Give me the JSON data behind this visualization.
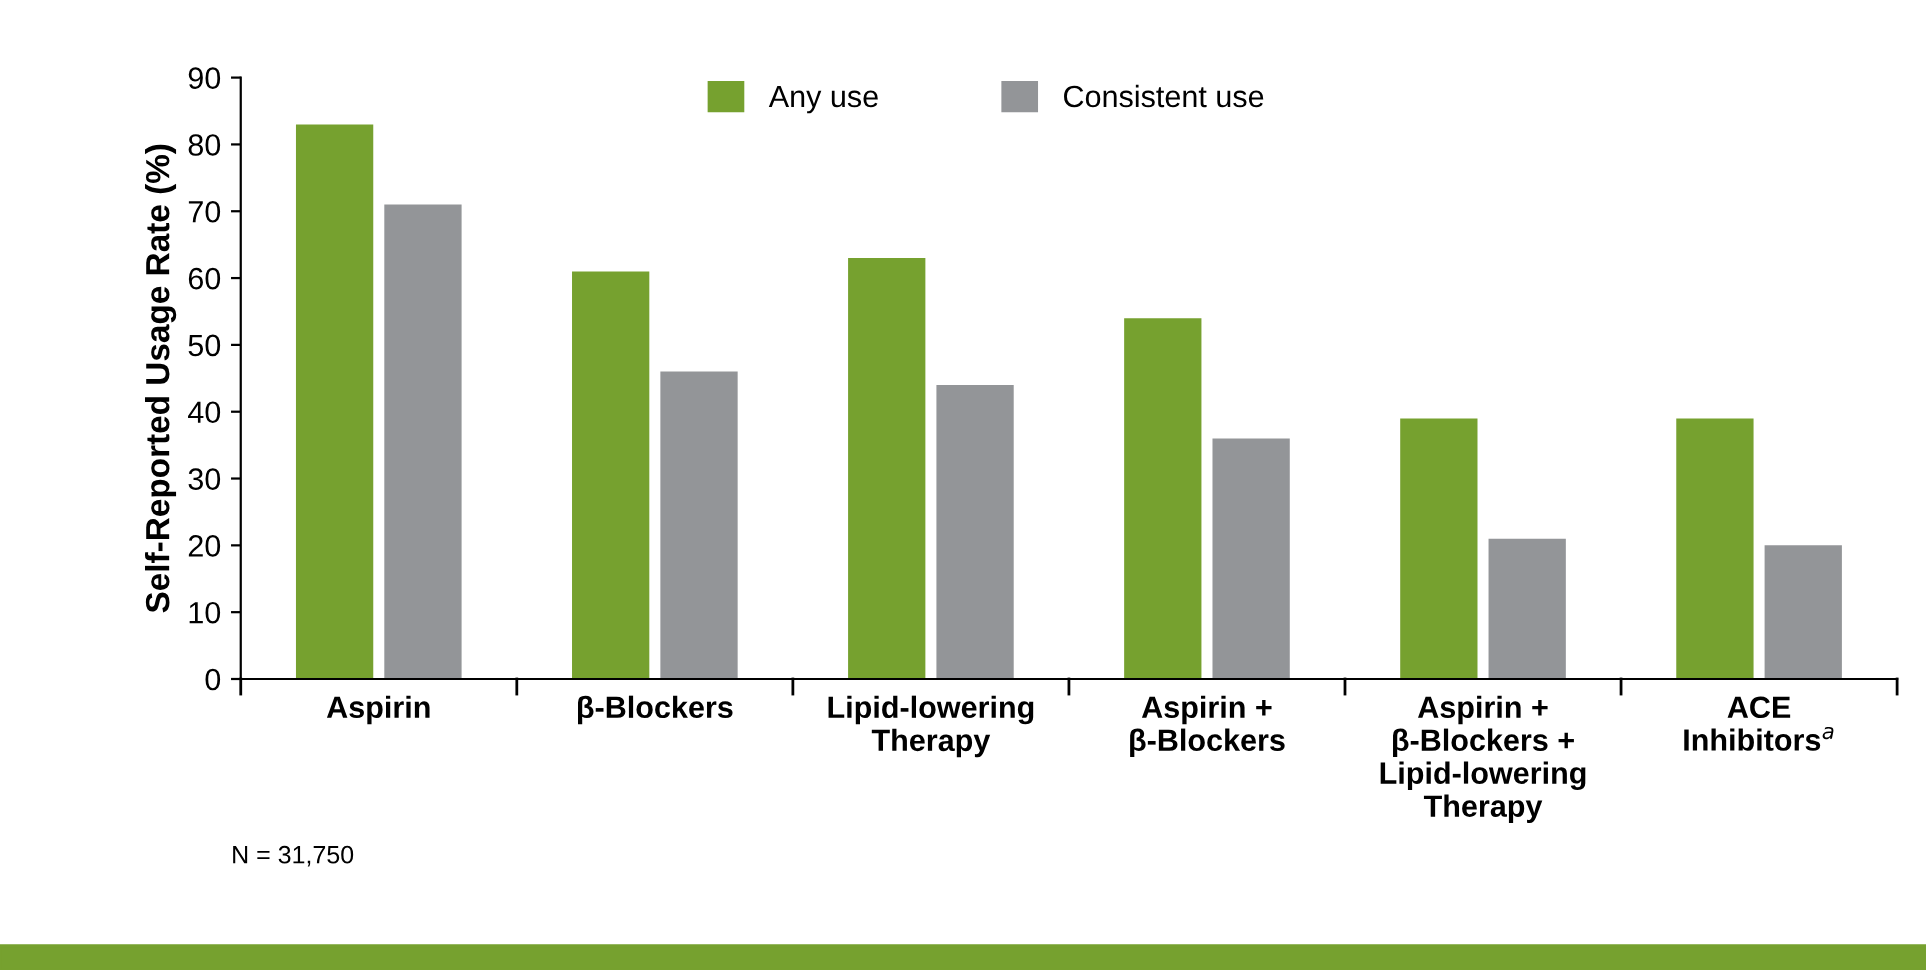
{
  "chart_data": {
    "type": "bar",
    "ylabel": "Self-Reported Usage Rate (%)",
    "categories": [
      "Aspirin",
      "β-Blockers",
      "Lipid-lowering\nTherapy",
      "Aspirin +\nβ-Blockers",
      "Aspirin +\nβ-Blockers +\nLipid-lowering\nTherapy",
      "ACE\nInhibitors$^{a}$"
    ],
    "series": [
      {
        "name": "Any use",
        "color": "#76a12f",
        "values": [
          83,
          61,
          63,
          54,
          39,
          39
        ]
      },
      {
        "name": "Consistent use",
        "color": "#939598",
        "values": [
          71,
          46,
          44,
          36,
          21,
          20
        ]
      }
    ],
    "ylim": [
      0,
      90
    ],
    "yticks": [
      0,
      10,
      20,
      30,
      40,
      50,
      60,
      70,
      80,
      90
    ],
    "grid": false,
    "legend": "top",
    "annotations": [
      "N = 31,750"
    ]
  }
}
